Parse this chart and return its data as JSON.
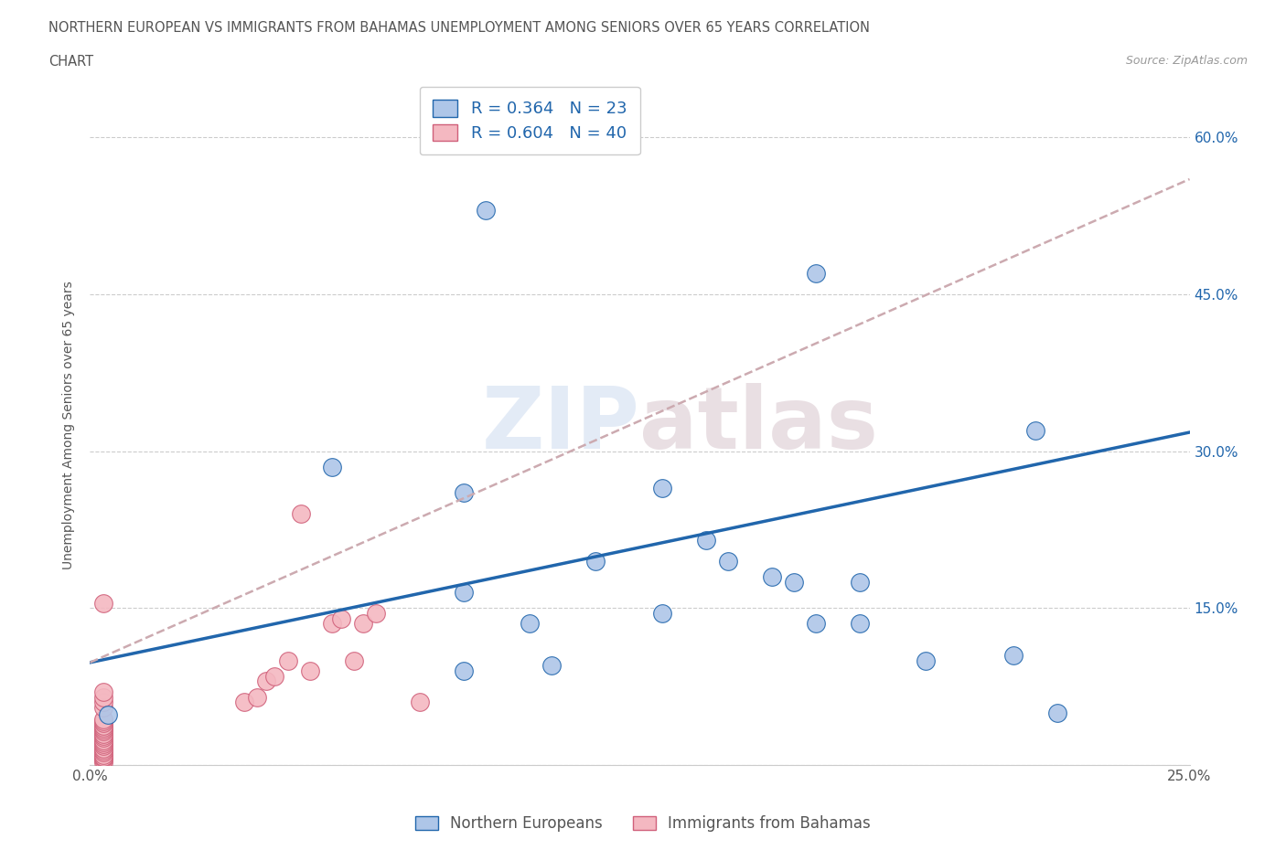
{
  "title_line1": "NORTHERN EUROPEAN VS IMMIGRANTS FROM BAHAMAS UNEMPLOYMENT AMONG SENIORS OVER 65 YEARS CORRELATION",
  "title_line2": "CHART",
  "source": "Source: ZipAtlas.com",
  "ylabel": "Unemployment Among Seniors over 65 years",
  "watermark": "ZIPatlas",
  "xlim": [
    0.0,
    0.25
  ],
  "ylim": [
    0.0,
    0.65
  ],
  "blue_R": 0.364,
  "blue_N": 23,
  "pink_R": 0.604,
  "pink_N": 40,
  "blue_color": "#aec6e8",
  "pink_color": "#f4b8c1",
  "blue_line_color": "#2166ac",
  "pink_edge_color": "#d0607a",
  "legend_label_blue": "Northern Europeans",
  "legend_label_pink": "Immigrants from Bahamas",
  "blue_points_x": [
    0.09,
    0.165,
    0.055,
    0.085,
    0.13,
    0.14,
    0.155,
    0.16,
    0.175,
    0.085,
    0.1,
    0.115,
    0.13,
    0.145,
    0.165,
    0.175,
    0.19,
    0.085,
    0.105,
    0.21,
    0.215,
    0.22,
    0.004
  ],
  "blue_points_y": [
    0.53,
    0.47,
    0.285,
    0.26,
    0.265,
    0.215,
    0.18,
    0.175,
    0.175,
    0.165,
    0.135,
    0.195,
    0.145,
    0.195,
    0.135,
    0.135,
    0.1,
    0.09,
    0.095,
    0.105,
    0.32,
    0.05,
    0.048
  ],
  "pink_points_x": [
    0.003,
    0.003,
    0.003,
    0.003,
    0.003,
    0.003,
    0.003,
    0.003,
    0.003,
    0.003,
    0.003,
    0.003,
    0.003,
    0.003,
    0.003,
    0.003,
    0.003,
    0.003,
    0.003,
    0.003,
    0.003,
    0.003,
    0.003,
    0.003,
    0.003,
    0.003,
    0.003,
    0.035,
    0.038,
    0.04,
    0.042,
    0.045,
    0.048,
    0.05,
    0.055,
    0.057,
    0.06,
    0.062,
    0.065,
    0.075
  ],
  "pink_points_y": [
    0.003,
    0.005,
    0.007,
    0.008,
    0.01,
    0.012,
    0.014,
    0.016,
    0.018,
    0.02,
    0.022,
    0.024,
    0.026,
    0.028,
    0.03,
    0.032,
    0.034,
    0.036,
    0.038,
    0.04,
    0.042,
    0.044,
    0.055,
    0.06,
    0.065,
    0.07,
    0.155,
    0.06,
    0.065,
    0.08,
    0.085,
    0.1,
    0.24,
    0.09,
    0.135,
    0.14,
    0.1,
    0.135,
    0.145,
    0.06
  ],
  "blue_line_x0": 0.0,
  "blue_line_y0": 0.098,
  "blue_line_x1": 0.25,
  "blue_line_y1": 0.318,
  "pink_line_x0": 0.0,
  "pink_line_y0": 0.098,
  "pink_line_x1": 0.25,
  "pink_line_y1": 0.56
}
